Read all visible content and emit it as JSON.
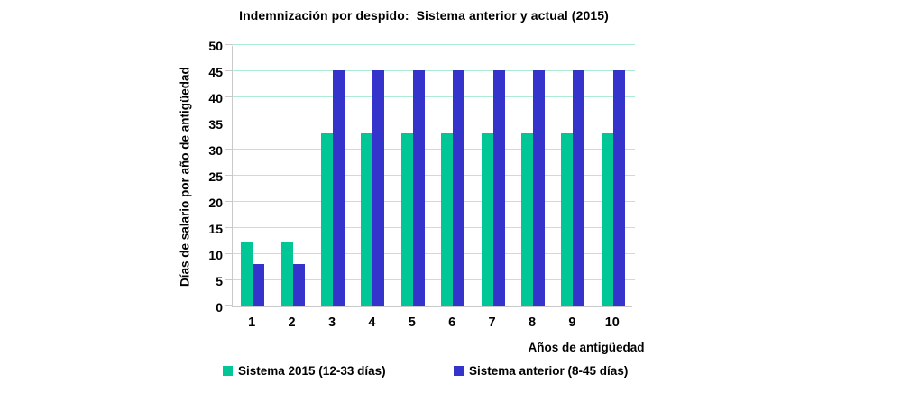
{
  "chart_data": {
    "type": "bar",
    "title": "Indemnización por despido:  Sistema anterior y actual (2015)",
    "categories": [
      "1",
      "2",
      "3",
      "4",
      "5",
      "6",
      "7",
      "8",
      "9",
      "10"
    ],
    "series": [
      {
        "name": "Sistema 2015 (12-33 días)",
        "color": "#00C795",
        "values": [
          12,
          12,
          33,
          33,
          33,
          33,
          33,
          33,
          33,
          33
        ]
      },
      {
        "name": "Sistema anterior (8-45 días)",
        "color": "#3433CB",
        "values": [
          8,
          8,
          45,
          45,
          45,
          45,
          45,
          45,
          45,
          45
        ]
      }
    ],
    "xlabel": "Años de antigüedad",
    "ylabel": "Días de salario por año de antigüedad",
    "ylim": [
      0,
      50
    ],
    "ytick_step": 5,
    "yticks": [
      0,
      5,
      10,
      15,
      20,
      25,
      30,
      35,
      40,
      45,
      50
    ],
    "grid": true,
    "legend_position": "bottom",
    "gridline_color": "#ACEBD5",
    "axis_color": "#C9C9C9",
    "text_color": "#000000",
    "background_color": "#FFFFFF"
  }
}
